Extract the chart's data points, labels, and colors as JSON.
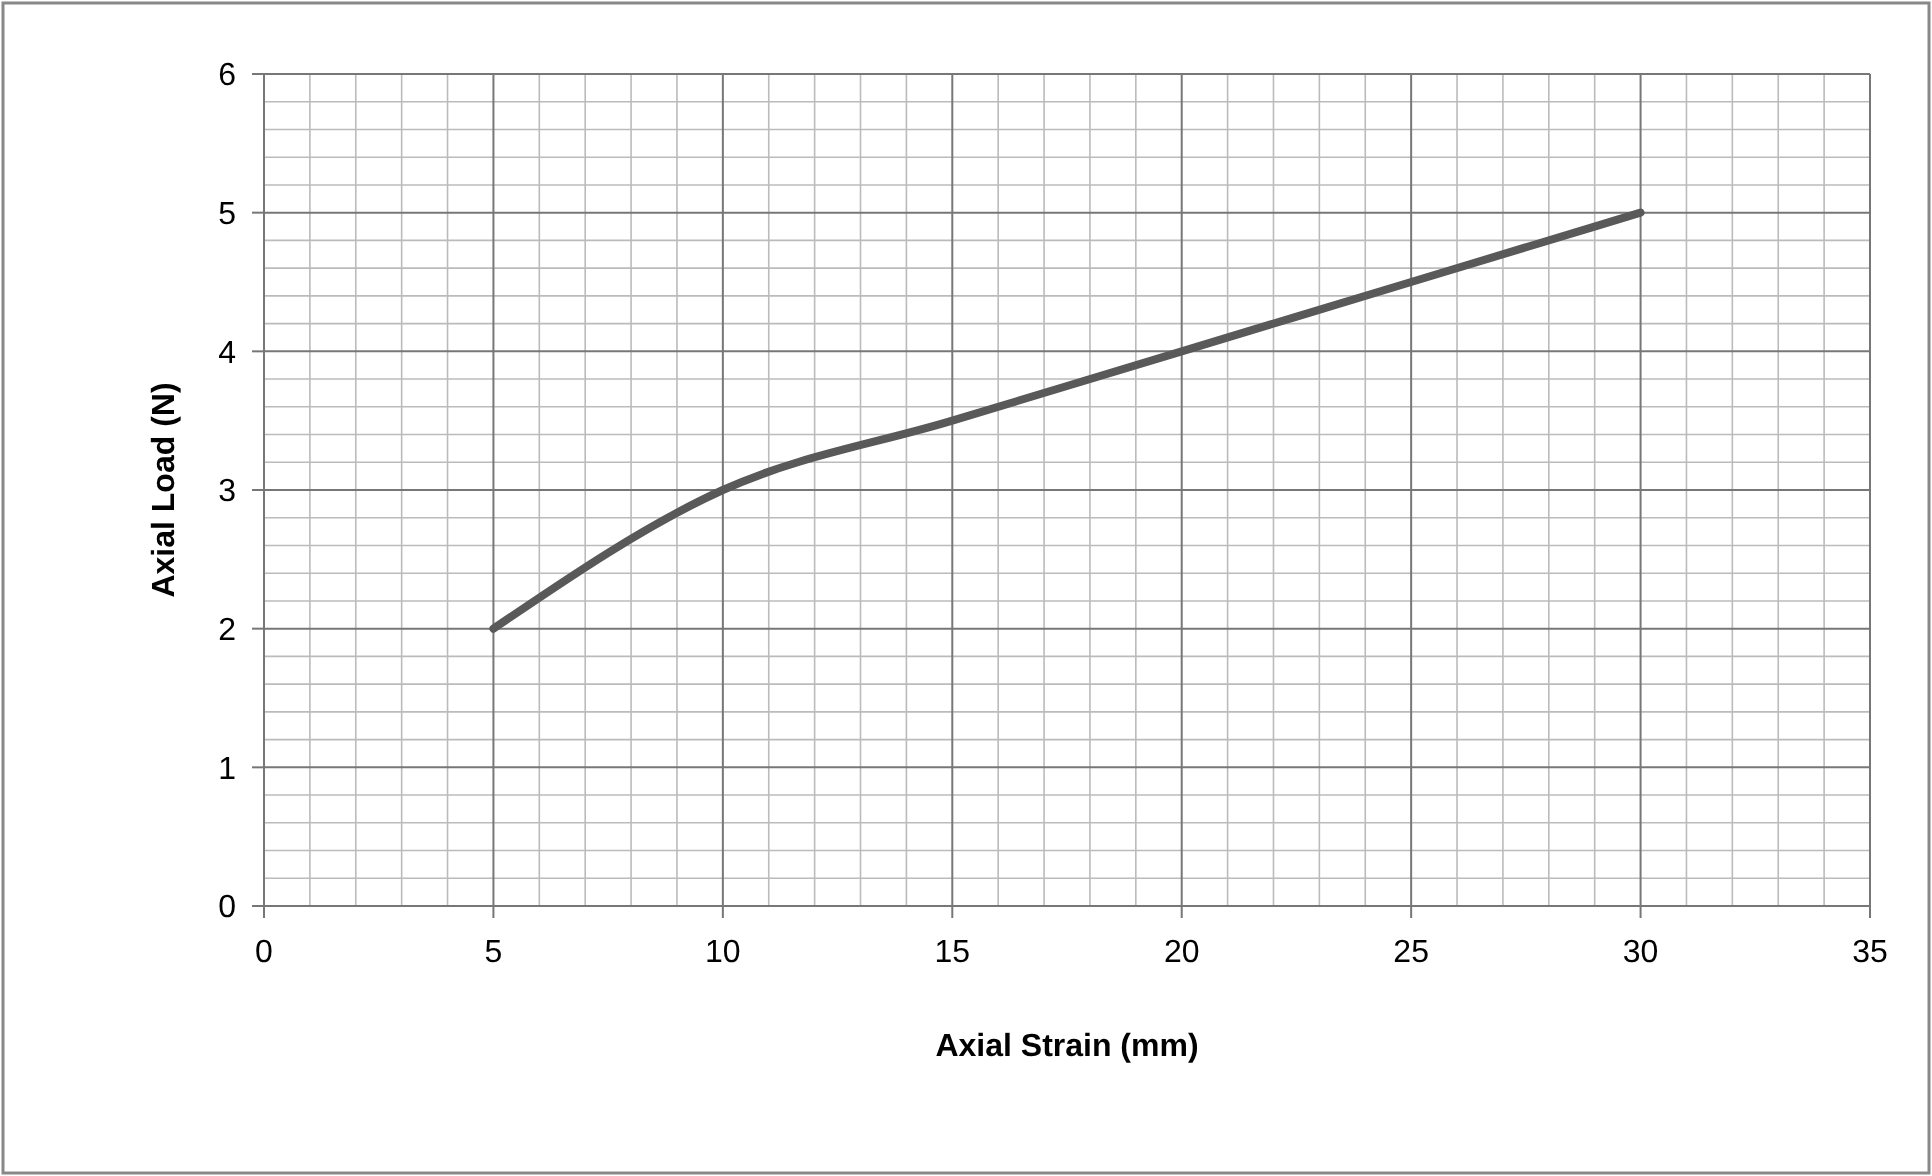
{
  "chart_data": {
    "type": "line",
    "xlabel": "Axial Strain (mm)",
    "ylabel": "Axial Load (N)",
    "x": [
      5,
      10,
      15,
      20,
      25,
      30
    ],
    "series": [
      {
        "color": "#595959",
        "values": [
          2,
          3,
          3.5,
          4,
          4.5,
          5
        ]
      }
    ],
    "xlim": [
      0,
      35
    ],
    "xticks": [
      0,
      5,
      10,
      15,
      20,
      25,
      30,
      35
    ],
    "ylim": [
      0,
      6
    ],
    "yticks": [
      0,
      1,
      2,
      3,
      4,
      5,
      6
    ],
    "grid": true,
    "marker": "none",
    "line_style": "solid"
  }
}
